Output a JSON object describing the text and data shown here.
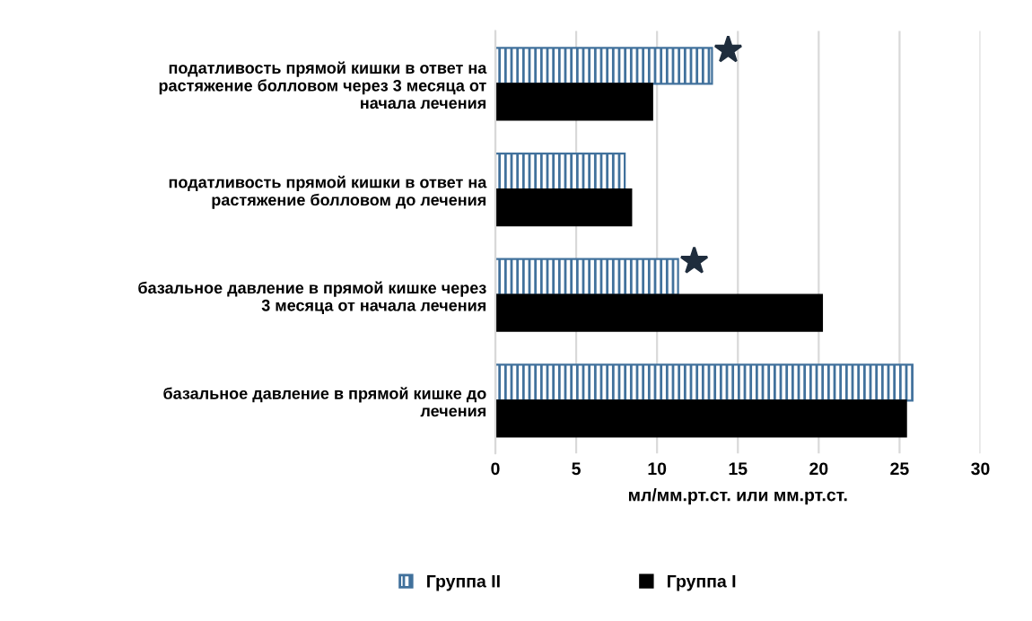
{
  "chart_data": {
    "type": "bar",
    "orientation": "horizontal",
    "xlabel": "мл/мм.рт.ст. или мм.рт.ст.",
    "categories": [
      "податливость прямой кишки в ответ на растяжение болловом через 3 месяца от начала лечения",
      "податливость прямой кишки в ответ на растяжение болловом до лечения",
      "базальное давление в прямой кишке через 3 месяца от начала лечения",
      "базальное давление в прямой кишке до лечения"
    ],
    "series": [
      {
        "name": "Группа II",
        "color": "#41719c",
        "values": [
          13.4,
          8.0,
          11.3,
          25.8
        ]
      },
      {
        "name": "Группа I",
        "color": "#000000",
        "values": [
          9.7,
          8.4,
          20.2,
          25.4
        ]
      }
    ],
    "xlim": [
      0,
      30
    ],
    "xticks": [
      0,
      5,
      10,
      15,
      20,
      25,
      30
    ],
    "grid": "x",
    "legend": "bottom"
  }
}
